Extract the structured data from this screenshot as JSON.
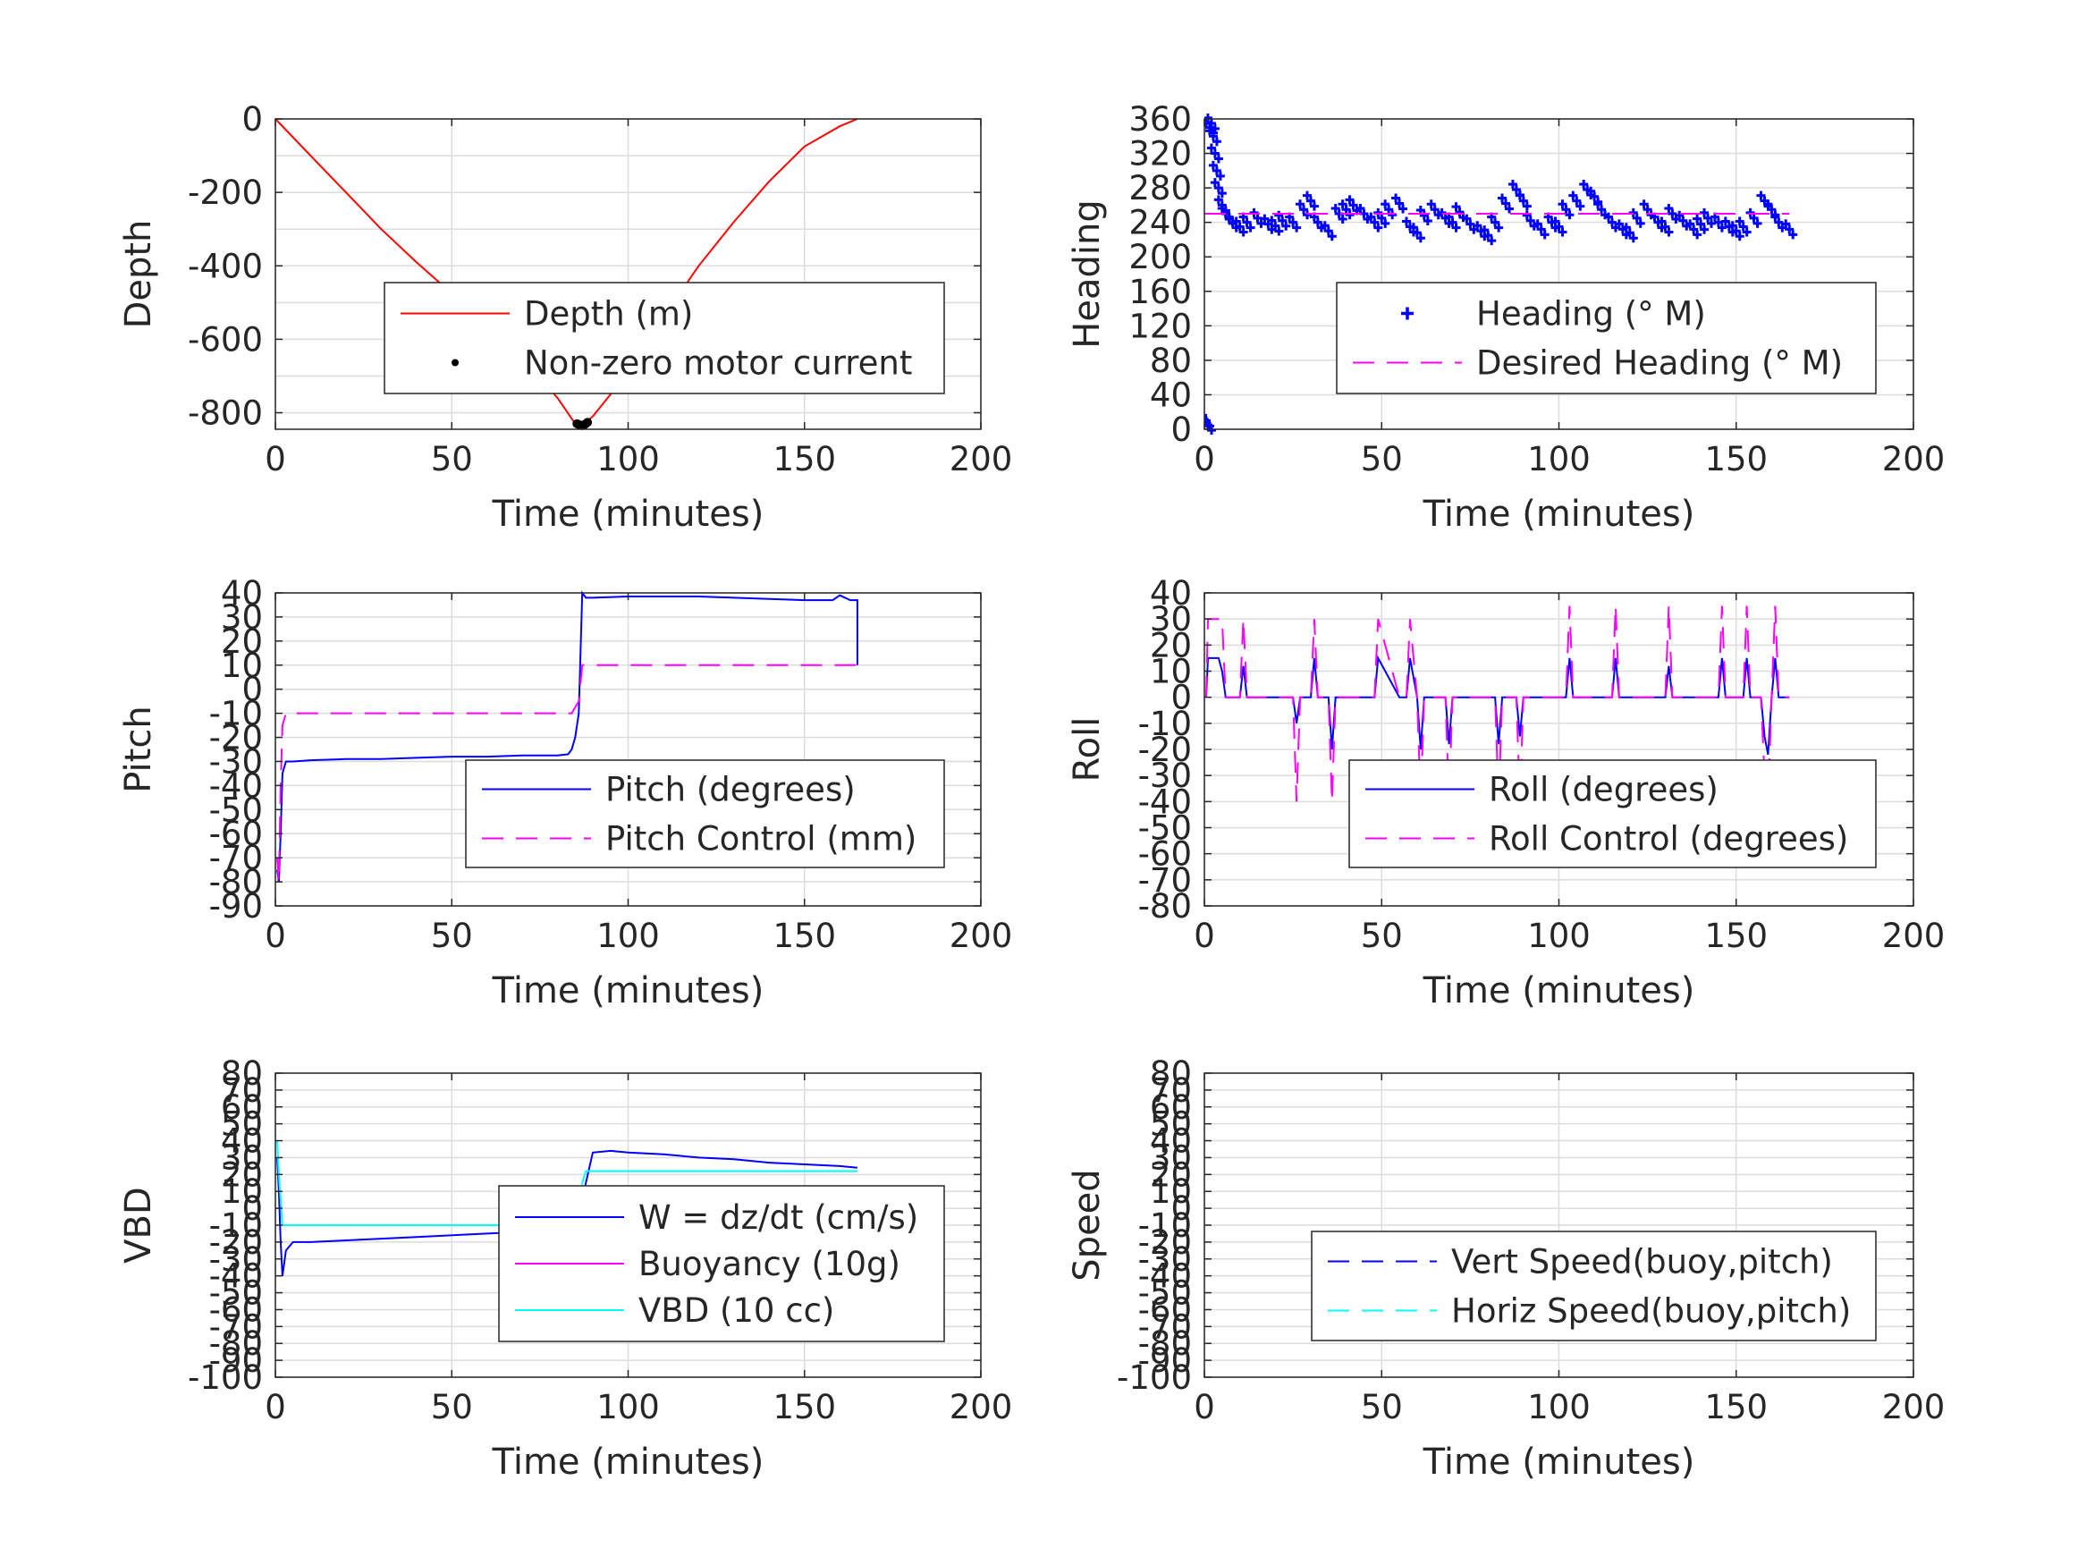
{
  "chart_data": [
    {
      "type": "line",
      "ylabel": "Depth",
      "xlabel": "Time (minutes)",
      "xlim": [
        0,
        200
      ],
      "ylim": [
        -845,
        0
      ],
      "xticks": [
        0,
        50,
        100,
        150,
        200
      ],
      "yticks": [
        0,
        -200,
        -400,
        -600,
        -800
      ],
      "ygrid": [
        0,
        -100,
        -200,
        -300,
        -400,
        -500,
        -600,
        -700,
        -800
      ],
      "grid": true,
      "legend_placement": "center-right",
      "series": [
        {
          "name": "Depth (m)",
          "color": "#ff0000",
          "style": "solid",
          "x": [
            0,
            5,
            10,
            20,
            30,
            40,
            50,
            60,
            70,
            80,
            85,
            87,
            90,
            95,
            100,
            110,
            120,
            130,
            140,
            150,
            160,
            165
          ],
          "y": [
            0,
            -50,
            -100,
            -200,
            -300,
            -390,
            -475,
            -560,
            -650,
            -760,
            -830,
            -835,
            -810,
            -750,
            -680,
            -540,
            -400,
            -280,
            -170,
            -75,
            -20,
            0
          ]
        },
        {
          "name": "Non-zero motor current",
          "color": "#000000",
          "style": "markers",
          "x": [
            85.5,
            86,
            86.5,
            87,
            87.5,
            88,
            88.5
          ],
          "y": [
            -830,
            -832,
            -834,
            -835,
            -833,
            -830,
            -826
          ]
        }
      ]
    },
    {
      "type": "scatter",
      "ylabel": "Heading",
      "xlabel": "Time (minutes)",
      "xlim": [
        0,
        200
      ],
      "ylim": [
        0,
        360
      ],
      "xticks": [
        0,
        50,
        100,
        150,
        200
      ],
      "yticks": [
        0,
        40,
        80,
        120,
        160,
        200,
        240,
        280,
        320,
        360
      ],
      "grid": true,
      "legend_placement": "center-right",
      "series": [
        {
          "name": "Heading (° M)",
          "color": "#0000ff",
          "style": "plus-markers",
          "x": [
            0.5,
            1,
            1.5,
            2,
            2.5,
            3,
            3.5,
            4,
            5,
            6,
            7,
            8,
            10,
            12,
            15,
            18,
            20,
            22,
            25,
            28,
            30,
            32,
            35,
            38,
            40,
            42,
            45,
            48,
            50,
            52,
            55,
            58,
            60,
            62,
            65,
            68,
            70,
            72,
            75,
            78,
            80,
            82,
            85,
            88,
            90,
            92,
            95,
            98,
            100,
            102,
            105,
            108,
            110,
            112,
            115,
            118,
            120,
            122,
            125,
            128,
            130,
            132,
            135,
            138,
            140,
            142,
            145,
            148,
            150,
            152,
            155,
            158,
            160,
            162,
            165
          ],
          "y": [
            10,
            5,
            350,
            355,
            340,
            320,
            300,
            280,
            260,
            250,
            245,
            240,
            235,
            240,
            245,
            238,
            236,
            242,
            240,
            255,
            265,
            240,
            230,
            250,
            255,
            260,
            250,
            240,
            245,
            255,
            262,
            235,
            228,
            248,
            255,
            245,
            240,
            252,
            238,
            230,
            225,
            240,
            262,
            278,
            265,
            242,
            232,
            240,
            235,
            255,
            265,
            278,
            270,
            255,
            240,
            232,
            228,
            245,
            255,
            240,
            235,
            250,
            242,
            232,
            238,
            245,
            240,
            235,
            230,
            235,
            245,
            265,
            255,
            240,
            232
          ]
        },
        {
          "name": "Desired Heading (° M)",
          "color": "#ff00ff",
          "style": "dashed",
          "x": [
            0,
            165
          ],
          "y": [
            250,
            250
          ]
        }
      ]
    },
    {
      "type": "line",
      "ylabel": "Pitch",
      "xlabel": "Time (minutes)",
      "xlim": [
        0,
        200
      ],
      "ylim": [
        -90,
        40
      ],
      "xticks": [
        0,
        50,
        100,
        150,
        200
      ],
      "yticks": [
        40,
        30,
        20,
        10,
        0,
        -10,
        -20,
        -30,
        -40,
        -50,
        -60,
        -70,
        -80,
        -90
      ],
      "grid": true,
      "legend_placement": "bottom-right",
      "series": [
        {
          "name": "Pitch (degrees)",
          "color": "#0000ff",
          "style": "solid",
          "x": [
            0.5,
            1,
            1.5,
            2,
            3,
            5,
            10,
            20,
            30,
            40,
            50,
            60,
            70,
            80,
            83,
            84,
            85,
            86,
            87,
            88,
            90,
            100,
            110,
            120,
            130,
            140,
            150,
            158,
            160,
            163,
            165,
            165
          ],
          "y": [
            -75,
            -80,
            -60,
            -35,
            -30,
            -30,
            -29.5,
            -29,
            -29,
            -28.5,
            -28,
            -28,
            -27.5,
            -27.5,
            -27,
            -25,
            -20,
            -10,
            40,
            38,
            38,
            38.5,
            38.5,
            38.5,
            38,
            37.5,
            37,
            37,
            39,
            37,
            37,
            10
          ]
        },
        {
          "name": "Pitch Control (mm)",
          "color": "#ff00ff",
          "style": "dashed",
          "x": [
            0.5,
            1,
            1.5,
            2,
            3,
            10,
            30,
            50,
            70,
            84,
            86,
            87,
            88,
            100,
            120,
            140,
            160,
            165
          ],
          "y": [
            -70,
            -80,
            -40,
            -15,
            -10,
            -10,
            -10,
            -10,
            -10,
            -10,
            -5,
            10,
            10,
            10,
            10,
            10,
            10,
            10
          ]
        }
      ]
    },
    {
      "type": "line",
      "ylabel": "Roll",
      "xlabel": "Time (minutes)",
      "xlim": [
        0,
        200
      ],
      "ylim": [
        -80,
        40
      ],
      "xticks": [
        0,
        50,
        100,
        150,
        200
      ],
      "yticks": [
        40,
        30,
        20,
        10,
        0,
        -10,
        -20,
        -30,
        -40,
        -50,
        -60,
        -70,
        -80
      ],
      "grid": true,
      "legend_placement": "bottom-right",
      "series": [
        {
          "name": "Roll (degrees)",
          "color": "#0000ff",
          "style": "solid",
          "x": [
            0.5,
            1,
            2,
            4,
            5,
            6,
            10,
            11,
            12,
            20,
            25,
            26,
            27,
            30,
            31,
            32,
            35,
            36,
            37,
            45,
            48,
            49,
            55,
            57,
            58,
            60,
            61,
            62,
            68,
            69,
            70,
            80,
            82,
            83,
            84,
            88,
            89,
            90,
            95,
            100,
            102,
            103,
            104,
            110,
            115,
            116,
            117,
            125,
            130,
            131,
            132,
            140,
            145,
            146,
            147,
            150,
            152,
            153,
            154,
            157,
            158,
            159,
            160,
            161,
            162,
            163,
            165
          ],
          "y": [
            0,
            15,
            15,
            15,
            10,
            0,
            0,
            12,
            0,
            0,
            0,
            -10,
            0,
            0,
            15,
            0,
            0,
            -20,
            0,
            0,
            0,
            15,
            0,
            0,
            15,
            0,
            -20,
            0,
            0,
            -18,
            0,
            0,
            0,
            -18,
            0,
            0,
            -15,
            0,
            0,
            0,
            0,
            15,
            0,
            0,
            0,
            15,
            0,
            0,
            0,
            12,
            0,
            0,
            0,
            15,
            0,
            0,
            0,
            15,
            0,
            0,
            -15,
            -22,
            0,
            15,
            0,
            0,
            0
          ]
        },
        {
          "name": "Roll Control (degrees)",
          "color": "#ff00ff",
          "style": "dashed",
          "x": [
            0.5,
            1,
            4,
            5,
            6,
            10,
            11,
            12,
            20,
            25,
            26,
            27,
            30,
            31,
            32,
            35,
            36,
            37,
            45,
            48,
            49,
            55,
            57,
            58,
            60,
            61,
            62,
            68,
            69,
            70,
            80,
            82,
            83,
            84,
            88,
            89,
            90,
            95,
            100,
            102,
            103,
            104,
            110,
            115,
            116,
            117,
            125,
            130,
            131,
            132,
            140,
            145,
            146,
            147,
            150,
            152,
            153,
            154,
            157,
            158,
            159,
            160,
            161,
            162,
            165
          ],
          "y": [
            0,
            30,
            30,
            30,
            0,
            0,
            30,
            0,
            0,
            0,
            -40,
            0,
            0,
            30,
            0,
            0,
            -40,
            0,
            0,
            0,
            30,
            0,
            0,
            30,
            0,
            -40,
            0,
            0,
            -40,
            0,
            0,
            0,
            -40,
            0,
            0,
            -40,
            0,
            0,
            0,
            0,
            35,
            0,
            0,
            0,
            35,
            0,
            0,
            0,
            35,
            0,
            0,
            0,
            35,
            0,
            0,
            0,
            35,
            0,
            0,
            -30,
            -40,
            0,
            35,
            0,
            0
          ]
        }
      ]
    },
    {
      "type": "line",
      "ylabel": "VBD",
      "xlabel": "Time (minutes)",
      "xlim": [
        0,
        200
      ],
      "ylim": [
        -100,
        80
      ],
      "xticks": [
        0,
        50,
        100,
        150,
        200
      ],
      "yticks": [
        80,
        70,
        60,
        50,
        40,
        30,
        20,
        10,
        0,
        -10,
        -20,
        -30,
        -40,
        -50,
        -60,
        -70,
        -80,
        -90,
        -100
      ],
      "grid": true,
      "legend_placement": "center-right",
      "series": [
        {
          "name": "W = dz/dt (cm/s)",
          "color": "#0000ff",
          "style": "solid",
          "x": [
            0.5,
            1,
            1.5,
            2,
            3,
            5,
            10,
            20,
            40,
            60,
            80,
            84,
            86,
            88,
            90,
            95,
            100,
            110,
            120,
            130,
            140,
            150,
            160,
            165
          ],
          "y": [
            30,
            10,
            -20,
            -40,
            -25,
            -20,
            -20,
            -19,
            -17,
            -15,
            -13,
            -12,
            -5,
            15,
            33,
            34,
            33,
            32,
            30,
            29,
            27,
            26,
            25,
            24
          ]
        },
        {
          "name": "Buoyancy (10g)",
          "color": "#ff00ff",
          "style": "solid",
          "x": [],
          "y": []
        },
        {
          "name": "VBD (10 cc)",
          "color": "#00ffff",
          "style": "solid",
          "x": [
            0.5,
            1,
            2,
            3,
            10,
            30,
            50,
            70,
            85,
            86,
            87,
            88,
            100,
            120,
            140,
            160,
            165
          ],
          "y": [
            40,
            20,
            -10,
            -10,
            -10,
            -10,
            -10,
            -10,
            -10,
            0,
            15,
            22,
            22,
            22,
            22,
            22,
            22
          ]
        }
      ]
    },
    {
      "type": "line",
      "ylabel": "Speed",
      "xlabel": "Time (minutes)",
      "xlim": [
        0,
        200
      ],
      "ylim": [
        -100,
        80
      ],
      "xticks": [
        0,
        50,
        100,
        150,
        200
      ],
      "yticks": [
        80,
        70,
        60,
        50,
        40,
        30,
        20,
        10,
        0,
        -10,
        -20,
        -30,
        -40,
        -50,
        -60,
        -70,
        -80,
        -90,
        -100
      ],
      "grid": true,
      "legend_placement": "center-right",
      "series": [
        {
          "name": "Vert Speed(buoy,pitch)",
          "color": "#0000ff",
          "style": "dashed",
          "x": [],
          "y": []
        },
        {
          "name": "Horiz Speed(buoy,pitch)",
          "color": "#00ffff",
          "style": "dashed",
          "x": [],
          "y": []
        }
      ]
    }
  ]
}
